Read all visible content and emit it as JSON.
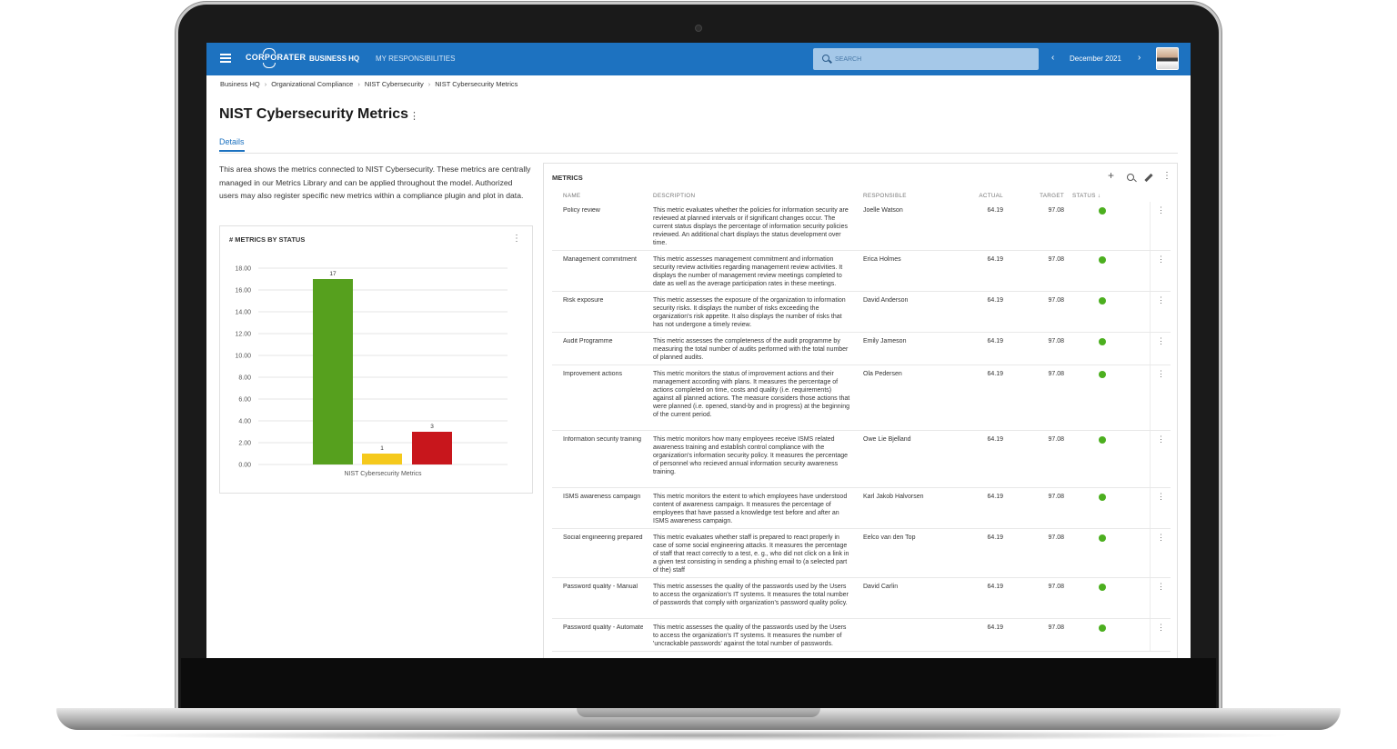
{
  "app": {
    "brand": "CORPORATER",
    "nav": [
      "BUSINESS HQ",
      "MY RESPONSIBILITIES"
    ],
    "search_placeholder": "SEARCH",
    "period": "December 2021",
    "prev_icon": "chevron-left-icon",
    "next_icon": "chevron-right-icon"
  },
  "breadcrumb": [
    "Business HQ",
    "Organizational Compliance",
    "NIST Cybersecurity",
    "NIST Cybersecurity Metrics"
  ],
  "page": {
    "title": "NIST Cybersecurity Metrics",
    "tab": "Details",
    "intro": "This area shows the metrics connected to NIST Cybersecurity. These metrics are centrally managed in our Metrics Library and can be applied throughout the model. Authorized users may also register specific new metrics within a compliance plugin and plot in data."
  },
  "chart_card": {
    "title": "# METRICS BY STATUS"
  },
  "chart_data": {
    "type": "bar",
    "categories": [
      "NIST Cybersecurity Metrics"
    ],
    "series": [
      {
        "values": [
          17
        ],
        "color": "#56a01e"
      },
      {
        "values": [
          1
        ],
        "color": "#f5c91c"
      },
      {
        "values": [
          3
        ],
        "color": "#c8161c"
      }
    ],
    "ylim": [
      0,
      18
    ],
    "yticks": [
      "0.00",
      "2.00",
      "4.00",
      "6.00",
      "8.00",
      "10.00",
      "12.00",
      "14.00",
      "16.00",
      "18.00"
    ],
    "xlabel": "NIST Cybersecurity Metrics",
    "grid": true
  },
  "metrics": {
    "title": "METRICS",
    "columns": {
      "name": "NAME",
      "description": "DESCRIPTION",
      "responsible": "RESPONSIBLE",
      "actual": "ACTUAL",
      "target": "TARGET",
      "status": "STATUS ↓"
    },
    "status_color": "#4caf1f",
    "rows": [
      {
        "name": "Policy review",
        "description": "This metric evaluates whether the policies for information security are reviewed at planned intervals or if significant changes occur. The current status displays the percentage of information security policies reviewed. An additional chart displays the status development over time.",
        "responsible": "Joelle Watson",
        "actual": "64.19",
        "target": "97.08"
      },
      {
        "name": "Management commitment",
        "description": "This metric assesses management commitment and information security review activities regarding management review activities. It displays the number of management review meetings completed to date as well as the average participation rates in these meetings.",
        "responsible": "Erica Holmes",
        "actual": "64.19",
        "target": "97.08"
      },
      {
        "name": "Risk exposure",
        "description": "This metric assesses the exposure of the organization to information security risks. It displays the number of risks exceeding the organization's risk appetite. It also displays the number of risks that has not undergone a timely review.",
        "responsible": "David Anderson",
        "actual": "64.19",
        "target": "97.08"
      },
      {
        "name": "Audit Programme",
        "description": "This metric assesses the completeness of the audit programme by measuring the total number of audits performed with the total number of planned audits.",
        "responsible": "Emily Jameson",
        "actual": "64.19",
        "target": "97.08"
      },
      {
        "name": "Improvement actions",
        "description": "This metric monitors the status of improvement actions and their management according with plans. It measures the percentage of actions completed on time, costs and quality (i.e. requirements) against all planned actions. The measure considers those actions that were planned (i.e. opened, stand-by and in progress) at the beginning of the current period.",
        "responsible": "Ola Pedersen",
        "actual": "64.19",
        "target": "97.08"
      },
      {
        "name": "Information security training",
        "description": "This metric monitors how many employees receive ISMS related awareness training and establish control compliance with the organization's information security policy. It measures the percentage of personnel who recieved annual information security awareness training.",
        "responsible": "Owe Lie Bjelland",
        "actual": "64.19",
        "target": "97.08"
      },
      {
        "name": "ISMS awareness campaign",
        "description": "This metric monitors the extent to which employees have understood content of awareness campaign. It measures the percentage of employees that have passed a knowledge test before and after an ISMS awareness campaign.",
        "responsible": "Karl Jakob Halvorsen",
        "actual": "64.19",
        "target": "97.08"
      },
      {
        "name": "Social engineering preparedness",
        "description": "This metric evaluates whether staff is prepared to react properly in case of some social engineering attacks. It measures the percentage of staff that react correctly to a test, e. g., who did not click on a link in a given test consisting in sending a phishing email to (a selected part of the) staff",
        "responsible": "Eelco van den Top",
        "actual": "64.19",
        "target": "97.08"
      },
      {
        "name": "Password quality - Manual",
        "description": "This metric assesses the quality of the passwords used by the Users to access the organization's IT systems. It measures the total number of passwords that comply with organization's password quality policy.",
        "responsible": "David Carlin",
        "actual": "64.19",
        "target": "97.08"
      },
      {
        "name": "Password quality - Automated",
        "description": "This metric assesses the quality of the passwords used by the Users to access the organization's IT systems. It measures the number of 'uncrackable passwords' against the total number of passwords.",
        "responsible": "",
        "actual": "64.19",
        "target": "97.08"
      }
    ]
  }
}
